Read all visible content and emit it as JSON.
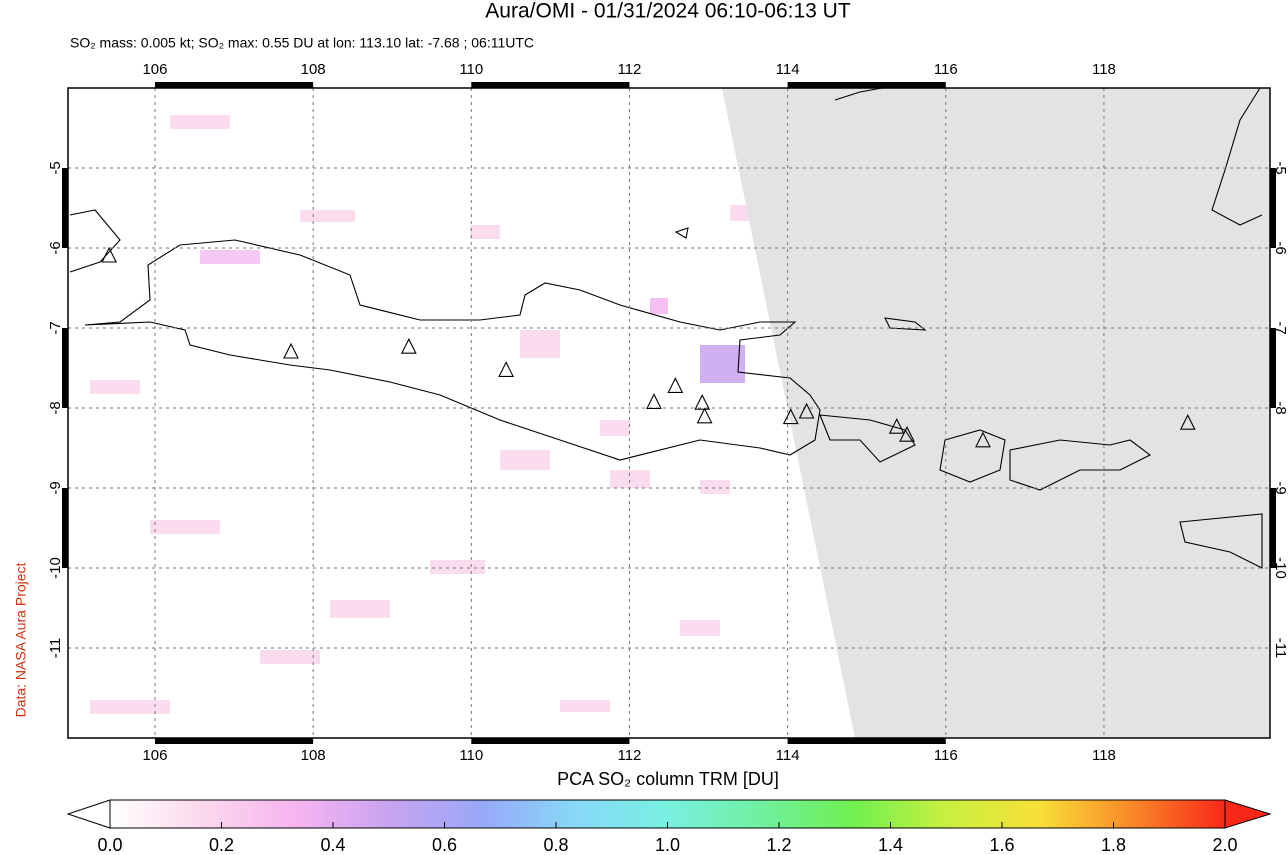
{
  "chart_data": {
    "type": "map",
    "title": "Aura/OMI - 01/31/2024 06:10-06:13 UT",
    "subtitle": "SO₂ mass: 0.005 kt; SO₂ max: 0.55 DU at lon: 113.10 lat: -7.68 ; 06:11UTC",
    "side_label": "Data: NASA Aura Project",
    "xlim": [
      104.9,
      120.1
    ],
    "ylim": [
      -12.125,
      -4.0
    ],
    "xticks": [
      106,
      108,
      110,
      112,
      114,
      116,
      118
    ],
    "yticks": [
      -5,
      -6,
      -7,
      -8,
      -9,
      -10,
      -11
    ],
    "grid": true,
    "volcanoes": {
      "lon": [
        105.42,
        107.72,
        109.21,
        110.44,
        112.31,
        112.58,
        112.92,
        112.95,
        114.04,
        114.24,
        115.38,
        115.51,
        116.47,
        119.06
      ],
      "lat": [
        -6.1,
        -7.3,
        -7.24,
        -7.53,
        -7.93,
        -7.73,
        -7.94,
        -8.11,
        -8.12,
        -8.05,
        -8.24,
        -8.34,
        -8.41,
        -8.19
      ]
    },
    "colorbar": {
      "label": "PCA SO₂ column TRM [DU]",
      "lim": [
        0,
        2
      ],
      "ticks": [
        {
          "value": 0,
          "label": "0.0"
        },
        {
          "value": 0.2,
          "label": "0.2"
        },
        {
          "value": 0.4,
          "label": "0.4"
        },
        {
          "value": 0.6,
          "label": "0.6"
        },
        {
          "value": 0.8,
          "label": "0.8"
        },
        {
          "value": 1,
          "label": "1.0"
        },
        {
          "value": 1.2,
          "label": "1.2"
        },
        {
          "value": 1.4,
          "label": "1.4"
        },
        {
          "value": 1.6,
          "label": "1.6"
        },
        {
          "value": 1.8,
          "label": "1.8"
        },
        {
          "value": 2,
          "label": "2.0"
        }
      ],
      "colors": [
        "#ffffff",
        "#fbd8ec",
        "#f6b4f0",
        "#c8a4f0",
        "#98a8f8",
        "#88d8f8",
        "#78f0e0",
        "#70f0a0",
        "#70f050",
        "#c8f040",
        "#f8e038",
        "#f88828",
        "#f82818"
      ]
    }
  }
}
